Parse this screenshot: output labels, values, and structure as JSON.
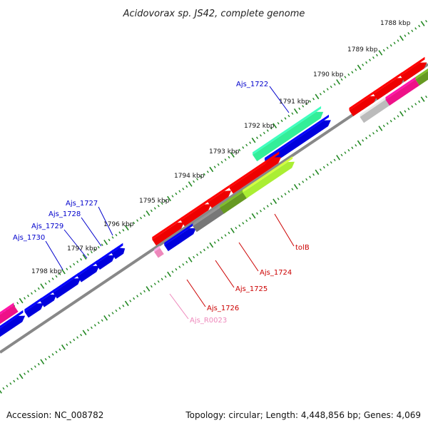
{
  "title": "Acidovorax sp. JS42, complete genome",
  "footer": {
    "accession": "Accession: NC_008782",
    "topology": "Topology: circular; Length: 4,448,856 bp; Genes: 4,069"
  },
  "colors": {
    "backbone": "#888888",
    "tick": "#228822",
    "blue": "#0000dd",
    "red": "#ee0000",
    "pink": "#ee1188",
    "green": "#33ee99",
    "lime": "#aaee33",
    "olive": "#669922",
    "gray": "#777777",
    "lightgray": "#bbbbbb",
    "lightpink": "#ee88bb",
    "blueLabel": "#0000cc",
    "redLabel": "#cc0000",
    "pinkLabel": "#ee88bb"
  },
  "scale": {
    "kbp_labels": [
      "1788 kbp",
      "1789 kbp",
      "1790 kbp",
      "1791 kbp",
      "1792 kbp",
      "1793 kbp",
      "1794 kbp",
      "1795 kbp",
      "1796 kbp",
      "1797 kbp",
      "1798 kbp"
    ]
  },
  "gene_labels": {
    "ajs_1722": "Ajs_1722",
    "ajs_1727": "Ajs_1727",
    "ajs_1728": "Ajs_1728",
    "ajs_1729": "Ajs_1729",
    "ajs_1730": "Ajs_1730",
    "tolb": "tolB",
    "ajs_1724": "Ajs_1724",
    "ajs_1725": "Ajs_1725",
    "ajs_1726": "Ajs_1726",
    "ajs_r0023": "Ajs_R0023"
  }
}
